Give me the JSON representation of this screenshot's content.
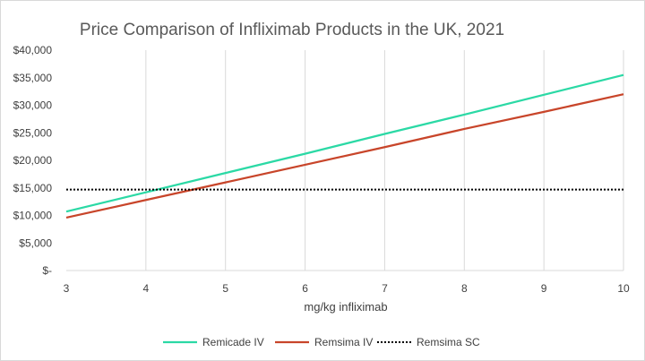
{
  "chart_data": {
    "type": "line",
    "title": "Price Comparison of Infliximab Products in the UK, 2021",
    "xlabel": "mg/kg infliximab",
    "ylabel": "",
    "x": [
      3,
      4,
      5,
      6,
      7,
      8,
      9,
      10
    ],
    "xlim": [
      3,
      10
    ],
    "ylim": [
      0,
      40000
    ],
    "x_tick_labels": [
      "3",
      "4",
      "5",
      "6",
      "7",
      "8",
      "9",
      "10"
    ],
    "y_ticks": [
      0,
      5000,
      10000,
      15000,
      20000,
      25000,
      30000,
      35000,
      40000
    ],
    "y_tick_labels": [
      "$-",
      "$5,000",
      "$10,000",
      "$15,000",
      "$20,000",
      "$25,000",
      "$30,000",
      "$35,000",
      "$40,000"
    ],
    "grid": "vertical",
    "legend_position": "bottom",
    "series": [
      {
        "name": "Remicade IV",
        "color": "#2bd9a5",
        "style": "solid",
        "values": [
          10700,
          14200,
          17700,
          21200,
          24800,
          28300,
          31900,
          35500
        ]
      },
      {
        "name": "Remsima IV",
        "color": "#c8452a",
        "style": "solid",
        "values": [
          9600,
          12800,
          16000,
          19200,
          22400,
          25700,
          28800,
          32000
        ]
      },
      {
        "name": "Remsima SC",
        "color": "#000000",
        "style": "dotted",
        "values": [
          14700,
          14700,
          14700,
          14700,
          14700,
          14700,
          14700,
          14700
        ]
      }
    ]
  }
}
